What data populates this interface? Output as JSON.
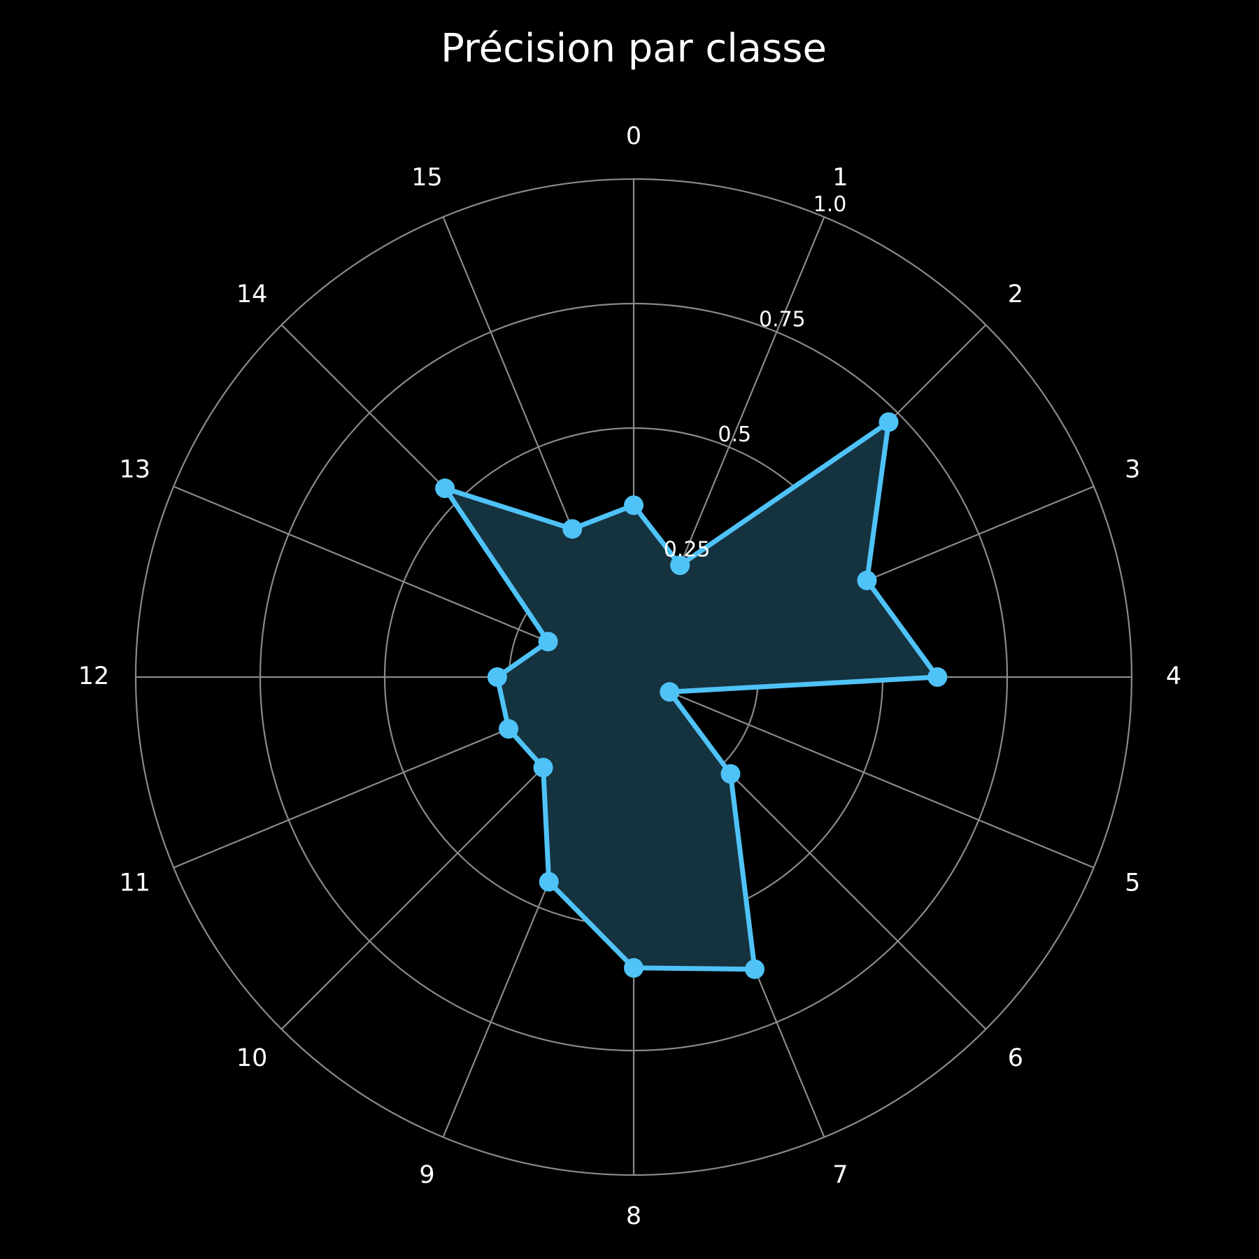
{
  "chart_data": {
    "type": "radar",
    "title": "Précision par classe",
    "categories": [
      "0",
      "1",
      "2",
      "3",
      "4",
      "5",
      "6",
      "7",
      "8",
      "9",
      "10",
      "11",
      "12",
      "13",
      "14",
      "15"
    ],
    "series": [
      {
        "values": [
          0.345,
          0.243,
          0.724,
          0.507,
          0.61,
          0.078,
          0.275,
          0.635,
          0.584,
          0.445,
          0.257,
          0.272,
          0.274,
          0.186,
          0.536,
          0.322
        ]
      }
    ],
    "rticks": [
      0.25,
      0.5,
      0.75,
      1.0
    ],
    "rtick_labels": [
      "0.25",
      "0.5",
      "0.75",
      "1.0"
    ],
    "rlim": [
      0,
      1.0
    ],
    "grid": true,
    "legend": "none",
    "colors": {
      "background": "#000000",
      "line": "#4fc3f7",
      "fill": "#15323f",
      "grid": "#8a8a8a",
      "text": "#ffffff"
    }
  }
}
